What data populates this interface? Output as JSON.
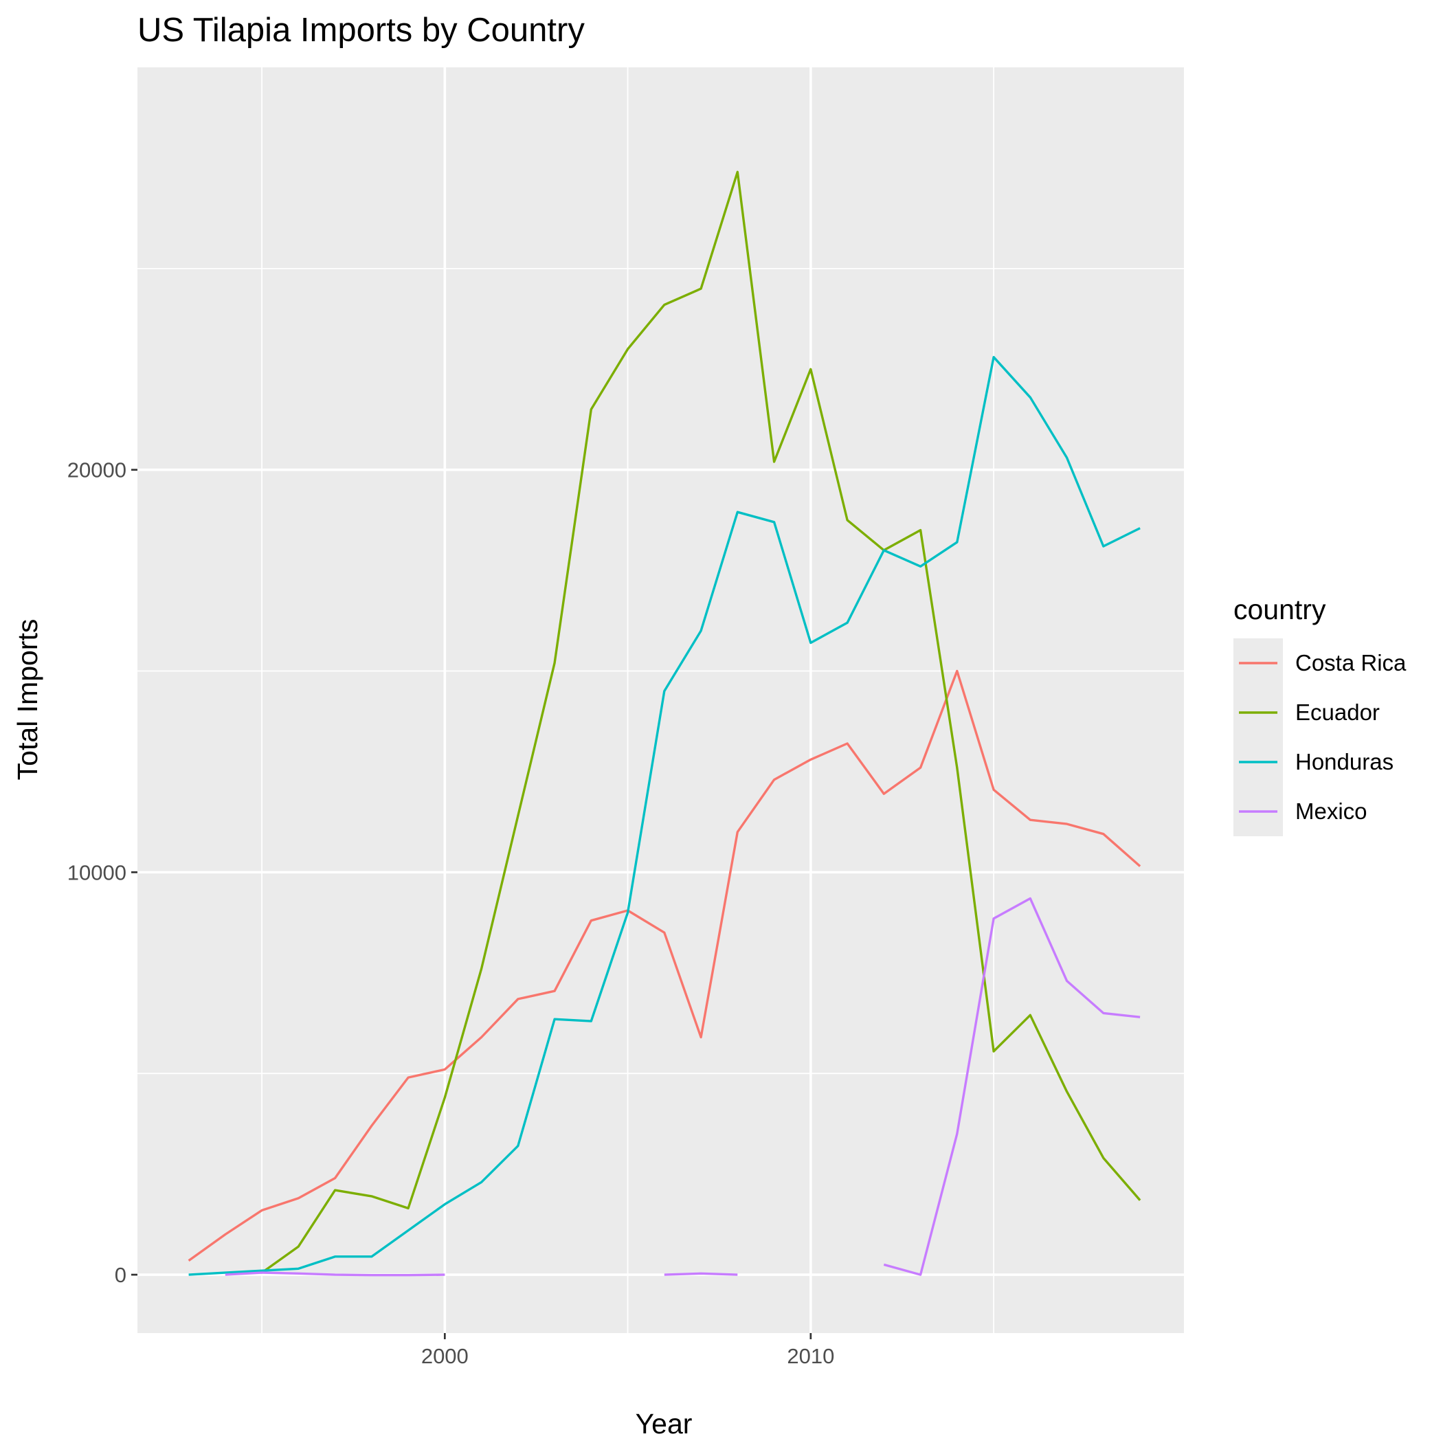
{
  "chart_data": {
    "type": "line",
    "title": "US Tilapia Imports by Country",
    "xlabel": "Year",
    "ylabel": "Total Imports",
    "xlim": [
      1991.6,
      2020.2
    ],
    "ylim": [
      -1450,
      30000
    ],
    "x_ticks": [
      2000,
      2010
    ],
    "y_ticks": [
      0,
      10000,
      20000
    ],
    "grid": true,
    "legend": {
      "title": "country",
      "position": "right"
    },
    "series": [
      {
        "name": "Costa Rica",
        "color": "#F8766D",
        "points": [
          [
            1993,
            350
          ],
          [
            1994,
            1000
          ],
          [
            1995,
            1600
          ],
          [
            1996,
            1900
          ],
          [
            1997,
            2400
          ],
          [
            1998,
            3700
          ],
          [
            1999,
            4900
          ],
          [
            2000,
            5100
          ],
          [
            2001,
            5900
          ],
          [
            2002,
            6850
          ],
          [
            2003,
            7050
          ],
          [
            2004,
            8800
          ],
          [
            2005,
            9050
          ],
          [
            2006,
            8500
          ],
          [
            2007,
            5900
          ],
          [
            2008,
            11000
          ],
          [
            2009,
            12300
          ],
          [
            2010,
            12800
          ],
          [
            2011,
            13200
          ],
          [
            2012,
            11950
          ],
          [
            2013,
            12600
          ],
          [
            2014,
            15000
          ],
          [
            2015,
            12050
          ],
          [
            2016,
            11300
          ],
          [
            2017,
            11200
          ],
          [
            2018,
            10950
          ],
          [
            2019,
            10150
          ]
        ]
      },
      {
        "name": "Ecuador",
        "color": "#7CAE00",
        "points": [
          [
            1995,
            50
          ],
          [
            1996,
            700
          ],
          [
            1997,
            2100
          ],
          [
            1998,
            1950
          ],
          [
            1999,
            1650
          ],
          [
            2000,
            4400
          ],
          [
            2001,
            7600
          ],
          [
            2002,
            11400
          ],
          [
            2003,
            15200
          ],
          [
            2004,
            21500
          ],
          [
            2005,
            23000
          ],
          [
            2006,
            24100
          ],
          [
            2007,
            24500
          ],
          [
            2008,
            27400
          ],
          [
            2009,
            20200
          ],
          [
            2010,
            22500
          ],
          [
            2011,
            18750
          ],
          [
            2012,
            18000
          ],
          [
            2013,
            18500
          ],
          [
            2014,
            12600
          ],
          [
            2015,
            5550
          ],
          [
            2016,
            6450
          ],
          [
            2017,
            4550
          ],
          [
            2018,
            2900
          ],
          [
            2019,
            1850
          ]
        ]
      },
      {
        "name": "Honduras",
        "color": "#00BFC4",
        "points": [
          [
            1993,
            0
          ],
          [
            1994,
            50
          ],
          [
            1995,
            100
          ],
          [
            1996,
            150
          ],
          [
            1997,
            450
          ],
          [
            1998,
            450
          ],
          [
            1999,
            1100
          ],
          [
            2000,
            1750
          ],
          [
            2001,
            2300
          ],
          [
            2002,
            3200
          ],
          [
            2003,
            6350
          ],
          [
            2004,
            6300
          ],
          [
            2005,
            9000
          ],
          [
            2006,
            14500
          ],
          [
            2007,
            16000
          ],
          [
            2008,
            18950
          ],
          [
            2009,
            18700
          ],
          [
            2010,
            15700
          ],
          [
            2011,
            16200
          ],
          [
            2012,
            18000
          ],
          [
            2013,
            17600
          ],
          [
            2014,
            18200
          ],
          [
            2015,
            22800
          ],
          [
            2016,
            21800
          ],
          [
            2017,
            20300
          ],
          [
            2018,
            18100
          ],
          [
            2019,
            18550
          ]
        ]
      },
      {
        "name": "Mexico",
        "color": "#C77CFF",
        "segments": [
          [
            [
              1994,
              0
            ],
            [
              1995,
              50
            ],
            [
              1996,
              30
            ],
            [
              1997,
              0
            ],
            [
              1998,
              -10
            ],
            [
              1999,
              -10
            ],
            [
              2000,
              0
            ]
          ],
          [
            [
              2006,
              0
            ],
            [
              2007,
              30
            ],
            [
              2008,
              0
            ]
          ],
          [
            [
              2012,
              250
            ],
            [
              2013,
              0
            ],
            [
              2014,
              3500
            ],
            [
              2015,
              8850
            ],
            [
              2016,
              9350
            ],
            [
              2017,
              7300
            ],
            [
              2018,
              6500
            ],
            [
              2019,
              6400
            ]
          ]
        ]
      }
    ]
  }
}
